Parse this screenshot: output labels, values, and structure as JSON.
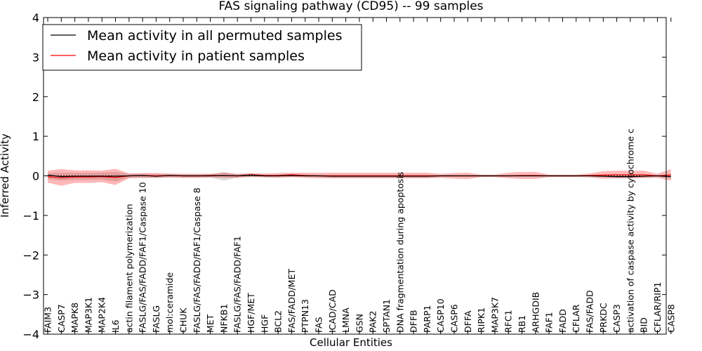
{
  "chart_data": {
    "type": "line",
    "title": "FAS signaling pathway (CD95) -- 99 samples",
    "xlabel": "Cellular Entities",
    "ylabel": "Inferred Activity",
    "ylim": [
      -4,
      4
    ],
    "yticks": [
      -4,
      -3,
      -2,
      -1,
      0,
      1,
      2,
      3,
      4
    ],
    "ytick_labels": [
      "−4",
      "−3",
      "−2",
      "−1",
      "0",
      "1",
      "2",
      "3",
      "4"
    ],
    "legend_position": "top-left",
    "grid": false,
    "categories": [
      "FAIM3",
      "CASP7",
      "MAPK8",
      "MAP3K1",
      "MAP2K4",
      "IL6",
      "actin filament polymerization",
      "FASLG/FAS/FADD/FAF1/Caspase 10",
      "FASLG",
      "mol:ceramide",
      "CHUK",
      "FASLG/FAS/FADD/FAF1/Caspase 8",
      "MET",
      "NFKB1",
      "FASLG/FAS/FADD/FAF1",
      "HGF/MET",
      "HGF",
      "BCL2",
      "FAS/FADD/MET",
      "PTPN13",
      "FAS",
      "ICAD/CAD",
      "LMNA",
      "GSN",
      "PAK2",
      "SPTAN1",
      "DNA fragmentation during apoptosis",
      "DFFB",
      "PARP1",
      "CASP10",
      "CASP6",
      "DFFA",
      "RIPK1",
      "MAP3K7",
      "RFC1",
      "RB1",
      "ARHGDIB",
      "FAF1",
      "FADD",
      "CFLAR",
      "FAS/FADD",
      "PRKDC",
      "CASP3",
      "activation of caspase activity by cytochrome c",
      "BID",
      "CFLAR/RIP1",
      "CASP8"
    ],
    "series": [
      {
        "name": "Mean activity in all permuted samples",
        "color": "#000000",
        "values": [
          0.02,
          -0.02,
          -0.01,
          -0.01,
          -0.01,
          -0.01,
          0.0,
          0.01,
          -0.01,
          0.01,
          0.0,
          0.0,
          0.0,
          0.01,
          0.0,
          0.02,
          0.0,
          0.0,
          0.01,
          0.0,
          0.0,
          -0.01,
          -0.01,
          -0.01,
          -0.01,
          -0.01,
          -0.01,
          -0.01,
          -0.01,
          0.0,
          0.0,
          0.0,
          0.0,
          0.0,
          0.0,
          0.0,
          0.0,
          0.0,
          0.0,
          0.0,
          0.0,
          -0.01,
          -0.02,
          -0.02,
          -0.01,
          0.0,
          -0.02
        ],
        "band_upper": [
          0.07,
          0.08,
          0.08,
          0.08,
          0.08,
          0.1,
          0.05,
          0.05,
          0.05,
          0.04,
          0.04,
          0.04,
          0.04,
          0.1,
          0.04,
          0.05,
          0.03,
          0.03,
          0.04,
          0.03,
          0.03,
          0.03,
          0.03,
          0.03,
          0.03,
          0.03,
          0.03,
          0.03,
          0.03,
          0.02,
          0.02,
          0.02,
          0.02,
          0.02,
          0.02,
          0.02,
          0.02,
          0.02,
          0.02,
          0.02,
          0.02,
          0.02,
          0.02,
          0.02,
          0.02,
          0.02,
          0.05
        ],
        "band_lower": [
          -0.08,
          -0.12,
          -0.1,
          -0.1,
          -0.1,
          -0.14,
          -0.05,
          -0.05,
          -0.05,
          -0.04,
          -0.04,
          -0.04,
          -0.04,
          -0.12,
          -0.04,
          -0.04,
          -0.03,
          -0.03,
          -0.03,
          -0.03,
          -0.03,
          -0.05,
          -0.05,
          -0.05,
          -0.05,
          -0.05,
          -0.05,
          -0.05,
          -0.05,
          -0.02,
          -0.02,
          -0.02,
          -0.02,
          -0.02,
          -0.02,
          -0.02,
          -0.02,
          -0.02,
          -0.02,
          -0.02,
          -0.02,
          -0.04,
          -0.06,
          -0.06,
          -0.04,
          -0.02,
          -0.08
        ]
      },
      {
        "name": "Mean activity in patient samples",
        "color": "#ff0000",
        "values": [
          -0.02,
          -0.05,
          -0.03,
          -0.03,
          -0.02,
          -0.04,
          0.0,
          0.01,
          0.0,
          0.01,
          0.0,
          0.0,
          0.01,
          0.01,
          0.0,
          0.03,
          0.01,
          0.01,
          0.03,
          0.01,
          0.0,
          0.0,
          0.0,
          0.0,
          0.0,
          0.0,
          0.0,
          0.0,
          0.0,
          0.0,
          0.0,
          0.0,
          0.0,
          0.0,
          0.0,
          0.01,
          0.01,
          0.0,
          0.0,
          0.0,
          0.01,
          0.02,
          0.03,
          0.03,
          0.03,
          0.0,
          0.02
        ],
        "band_upper": [
          0.13,
          0.17,
          0.14,
          0.14,
          0.13,
          0.18,
          0.06,
          0.07,
          0.07,
          0.06,
          0.05,
          0.05,
          0.05,
          0.08,
          0.05,
          0.07,
          0.06,
          0.07,
          0.08,
          0.08,
          0.08,
          0.08,
          0.08,
          0.08,
          0.08,
          0.08,
          0.08,
          0.08,
          0.08,
          0.05,
          0.07,
          0.08,
          0.03,
          0.03,
          0.08,
          0.1,
          0.1,
          0.03,
          0.03,
          0.03,
          0.06,
          0.12,
          0.13,
          0.13,
          0.13,
          0.05,
          0.17
        ],
        "band_lower": [
          -0.17,
          -0.25,
          -0.18,
          -0.18,
          -0.16,
          -0.23,
          -0.06,
          -0.05,
          -0.05,
          -0.04,
          -0.05,
          -0.05,
          -0.04,
          -0.05,
          -0.05,
          -0.02,
          -0.04,
          -0.05,
          -0.03,
          -0.05,
          -0.06,
          -0.06,
          -0.06,
          -0.06,
          -0.06,
          -0.06,
          -0.06,
          -0.06,
          -0.06,
          -0.05,
          -0.07,
          -0.08,
          -0.03,
          -0.03,
          -0.06,
          -0.08,
          -0.08,
          -0.03,
          -0.03,
          -0.03,
          -0.04,
          -0.07,
          -0.06,
          -0.06,
          -0.06,
          -0.05,
          -0.12
        ]
      }
    ]
  }
}
